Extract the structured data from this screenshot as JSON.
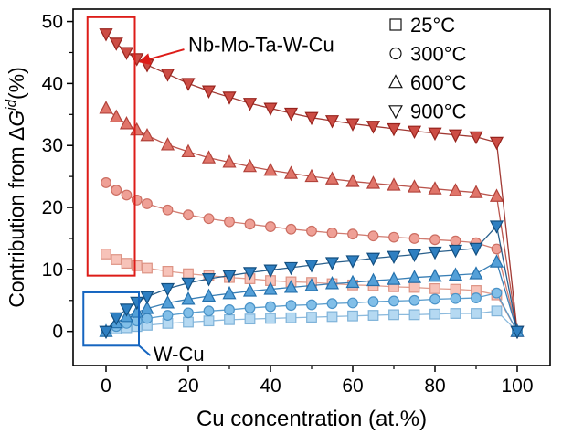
{
  "chart_data": {
    "type": "scatter",
    "title": "",
    "xlabel": "Cu concentration (at.%)",
    "ylabel": "Contribution from ΔG^{id}(%)",
    "xlim": [
      -8,
      108
    ],
    "ylim": [
      -5.5,
      52
    ],
    "xticks": [
      0,
      20,
      40,
      60,
      80,
      100
    ],
    "x_minor_ticks": [
      10,
      30,
      50,
      70,
      90
    ],
    "yticks": [
      0,
      10,
      20,
      30,
      40,
      50
    ],
    "y_minor_ticks": [
      5,
      15,
      25,
      35,
      45
    ],
    "legend": {
      "position": "top-right",
      "marker_fill": "#ffffff",
      "marker_edge": "#111111",
      "items": [
        {
          "label": "25°C",
          "marker": "square"
        },
        {
          "label": "300°C",
          "marker": "circle"
        },
        {
          "label": "600°C",
          "marker": "triangle-up"
        },
        {
          "label": "900°C",
          "marker": "triangle-down"
        }
      ]
    },
    "x": [
      0,
      2.5,
      5,
      7.5,
      10,
      15,
      20,
      25,
      30,
      35,
      40,
      45,
      50,
      55,
      60,
      65,
      70,
      75,
      80,
      85,
      90,
      95,
      100
    ],
    "series": [
      {
        "name": "Nb-Mo-Ta-W-Cu 25°C",
        "group": "Nb-Mo-Ta-W-Cu",
        "temperature": "25°C",
        "marker": "square",
        "fill": "#f7c3b9",
        "edge": "#dd9384",
        "values": [
          12.5,
          11.6,
          11,
          10.6,
          10.2,
          9.7,
          9.3,
          9,
          8.7,
          8.5,
          8.2,
          8,
          7.9,
          7.7,
          7.5,
          7.4,
          7.2,
          7.1,
          6.9,
          6.8,
          6.6,
          5.9,
          0
        ]
      },
      {
        "name": "Nb-Mo-Ta-W-Cu 300°C",
        "group": "Nb-Mo-Ta-W-Cu",
        "temperature": "300°C",
        "marker": "circle",
        "fill": "#efa096",
        "edge": "#cc6e62",
        "values": [
          24,
          22.8,
          22,
          21.2,
          20.6,
          19.6,
          18.8,
          18.2,
          17.7,
          17.3,
          16.9,
          16.5,
          16.2,
          15.9,
          15.7,
          15.4,
          15.2,
          15,
          14.8,
          14.6,
          14.3,
          13.3,
          0
        ]
      },
      {
        "name": "Nb-Mo-Ta-W-Cu 600°C",
        "group": "Nb-Mo-Ta-W-Cu",
        "temperature": "600°C",
        "marker": "triangle-up",
        "fill": "#e0756a",
        "edge": "#b2423a",
        "values": [
          36,
          34.6,
          33.5,
          32.5,
          31.6,
          30.1,
          29,
          28,
          27.3,
          26.6,
          26,
          25.5,
          25,
          24.6,
          24.2,
          23.9,
          23.6,
          23.3,
          23,
          22.7,
          22.4,
          21.8,
          0
        ]
      },
      {
        "name": "Nb-Mo-Ta-W-Cu 900°C",
        "group": "Nb-Mo-Ta-W-Cu",
        "temperature": "900°C",
        "marker": "triangle-down",
        "fill": "#cc4c44",
        "edge": "#97231d",
        "values": [
          48,
          46.5,
          45,
          44,
          43,
          41.5,
          40,
          38.8,
          37.8,
          36.8,
          36,
          35.2,
          34.5,
          34,
          33.5,
          33.1,
          32.7,
          32.3,
          32,
          31.7,
          31.4,
          30.5,
          0
        ]
      },
      {
        "name": "W-Cu 25°C",
        "group": "W-Cu",
        "temperature": "25°C",
        "marker": "square",
        "fill": "#b5d9f2",
        "edge": "#7fb3d9",
        "values": [
          0,
          0.4,
          0.6,
          0.8,
          1,
          1.3,
          1.5,
          1.7,
          1.9,
          2,
          2.1,
          2.2,
          2.3,
          2.4,
          2.5,
          2.6,
          2.7,
          2.7,
          2.8,
          2.9,
          2.9,
          3.3,
          0
        ]
      },
      {
        "name": "W-Cu 300°C",
        "group": "W-Cu",
        "temperature": "300°C",
        "marker": "circle",
        "fill": "#82bfe8",
        "edge": "#4a93c8",
        "values": [
          0,
          0.8,
          1.3,
          1.7,
          2.1,
          2.6,
          3,
          3.3,
          3.5,
          3.8,
          4,
          4.2,
          4.3,
          4.5,
          4.6,
          4.8,
          4.9,
          5,
          5.2,
          5.3,
          5.4,
          6.2,
          0
        ]
      },
      {
        "name": "W-Cu 600°C",
        "group": "W-Cu",
        "temperature": "600°C",
        "marker": "triangle-up",
        "fill": "#54a0d8",
        "edge": "#2471ad",
        "values": [
          0,
          1.4,
          2.4,
          3.1,
          3.7,
          4.6,
          5.2,
          5.7,
          6.1,
          6.5,
          6.8,
          7.1,
          7.4,
          7.7,
          7.9,
          8.2,
          8.4,
          8.7,
          8.9,
          9.1,
          9.3,
          11.2,
          0
        ]
      },
      {
        "name": "W-Cu 900°C",
        "group": "W-Cu",
        "temperature": "900°C",
        "marker": "triangle-down",
        "fill": "#2e7fc1",
        "edge": "#134f80",
        "values": [
          0,
          2.2,
          3.6,
          4.7,
          5.6,
          6.9,
          7.8,
          8.5,
          9,
          9.5,
          9.9,
          10.3,
          10.7,
          11.1,
          11.4,
          11.8,
          12.1,
          12.4,
          12.8,
          13.1,
          13.4,
          17,
          0
        ]
      }
    ],
    "annotations": [
      {
        "id": "nb-box",
        "type": "rect",
        "color": "#dd1c18",
        "x1": -4.5,
        "y1": 9,
        "x2": 7,
        "y2": 50.7
      },
      {
        "id": "nb-label",
        "type": "label-arrow",
        "text": "Nb-Mo-Ta-W-Cu",
        "color": "#dd1c18",
        "text_x": 20,
        "text_y": 46,
        "arrow_from_x": 19,
        "arrow_from_y": 45.5,
        "arrow_to_x": 8.3,
        "arrow_to_y": 43.5
      },
      {
        "id": "wcu-box",
        "type": "rect",
        "color": "#1565c0",
        "x1": -5.5,
        "y1": -2.3,
        "x2": 8,
        "y2": 6.3
      },
      {
        "id": "wcu-label",
        "type": "label-line",
        "text": "W-Cu",
        "color": "#1565c0",
        "text_x": 11.5,
        "text_y": -3.9,
        "line_from_x": 8,
        "line_from_y": -2.3,
        "line_to_x": 10.8,
        "line_to_y": -3.9
      }
    ]
  }
}
